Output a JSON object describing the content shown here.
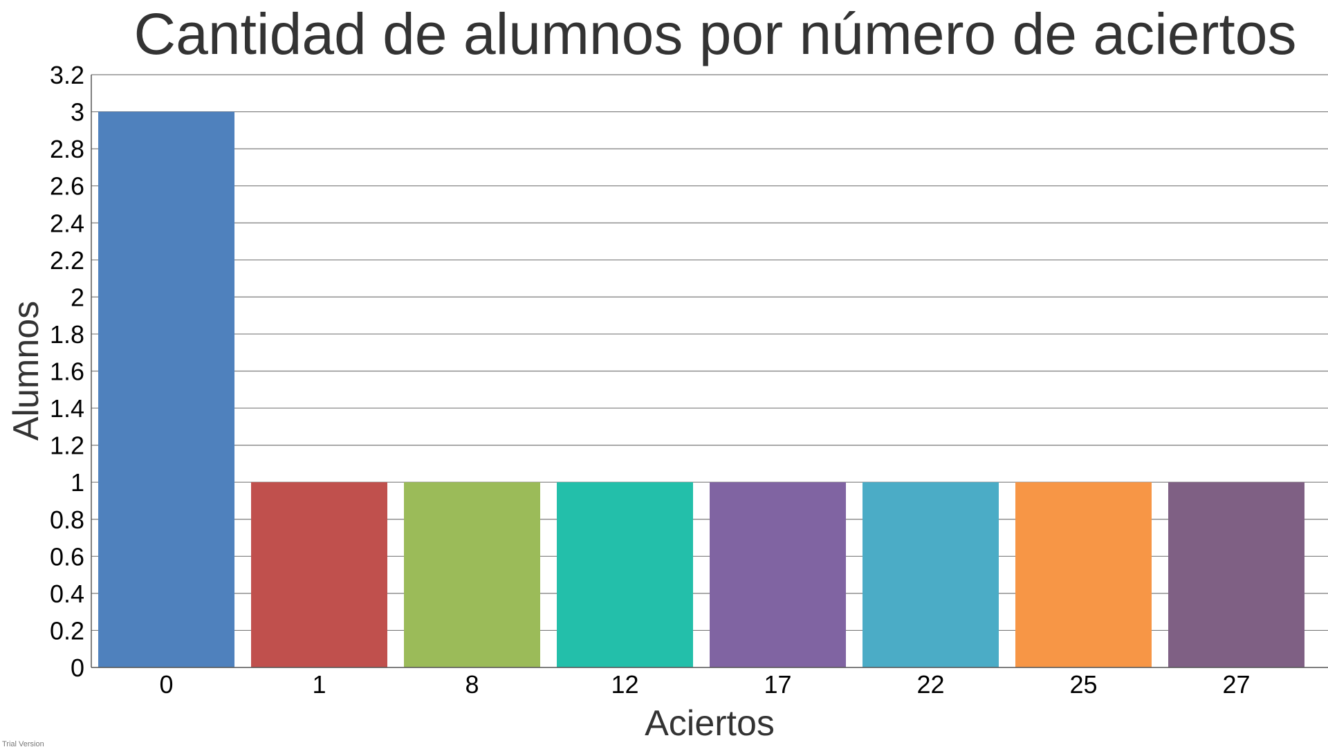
{
  "chart_data": {
    "type": "bar",
    "title": "Cantidad de alumnos por número de aciertos",
    "xlabel": "Aciertos",
    "ylabel": "Alumnos",
    "categories": [
      "0",
      "1",
      "8",
      "12",
      "17",
      "22",
      "25",
      "27"
    ],
    "values": [
      3,
      1,
      1,
      1,
      1,
      1,
      1,
      1
    ],
    "ylim": [
      0,
      3.2
    ],
    "yticks": [
      "0",
      "0.2",
      "0.4",
      "0.6",
      "0.8",
      "1",
      "1.2",
      "1.4",
      "1.6",
      "1.8",
      "2",
      "2.2",
      "2.4",
      "2.6",
      "2.8",
      "3",
      "3.2"
    ],
    "grid": true,
    "legend": "none",
    "colors": [
      "#4f81bd",
      "#c0504d",
      "#9bbb59",
      "#23bfaa",
      "#8064a2",
      "#4bacc6",
      "#f79646",
      "#7f6084"
    ]
  },
  "watermark": "Trial Version"
}
